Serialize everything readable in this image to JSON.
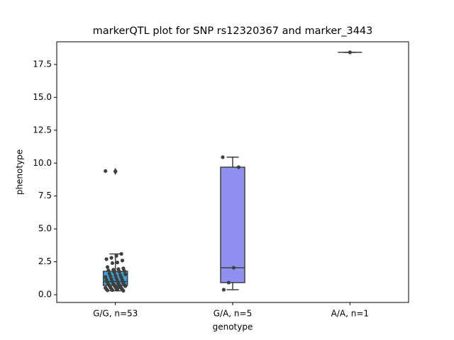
{
  "chart_data": {
    "type": "box",
    "title": "markerQTL plot for SNP rs12320367 and marker_3443",
    "xlabel": "genotype",
    "ylabel": "phenotype",
    "categories": [
      "G/G, n=53",
      "G/A, n=5",
      "A/A, n=1"
    ],
    "ylim": [
      -0.59,
      19.22
    ],
    "yticks": [
      {
        "value": 0,
        "label": "0.0"
      },
      2.5,
      {
        "value": 5,
        "label": "5.0"
      },
      7.5,
      {
        "value": 10,
        "label": "10.0"
      },
      12.5,
      {
        "value": 15,
        "label": "15.0"
      },
      17.5
    ],
    "boxes": [
      {
        "color": "#3ba3dc",
        "whislo": 0.3,
        "q1": 0.7,
        "med": 1.0,
        "q3": 1.78,
        "whishi": 3.1,
        "fliers": [
          9.37
        ],
        "points": [
          9.4,
          3.1,
          2.95,
          2.8,
          2.7,
          2.6,
          2.45,
          2.4,
          2.1,
          2.0,
          1.95,
          1.9,
          1.85,
          1.8,
          1.75,
          1.7,
          1.6,
          1.55,
          1.5,
          1.45,
          1.4,
          1.35,
          1.3,
          1.25,
          1.2,
          1.15,
          1.1,
          1.05,
          1.0,
          0.95,
          0.9,
          0.85,
          0.8,
          0.78,
          0.75,
          0.72,
          0.7,
          0.68,
          0.65,
          0.6,
          0.58,
          0.55,
          0.52,
          0.5,
          0.48,
          0.45,
          0.42,
          0.4,
          0.38,
          0.35,
          0.33,
          0.3,
          0.55
        ]
      },
      {
        "color": "#9090f0",
        "whislo": 0.38,
        "q1": 0.92,
        "med": 2.05,
        "q3": 9.69,
        "whishi": 10.45,
        "fliers": [],
        "points": [
          10.45,
          9.69,
          2.05,
          0.92,
          0.38
        ]
      },
      {
        "color": "#4dc47a",
        "whislo": 18.42,
        "q1": 18.42,
        "med": 18.42,
        "q3": 18.42,
        "whishi": 18.42,
        "fliers": [],
        "points": [
          18.42
        ]
      }
    ]
  }
}
